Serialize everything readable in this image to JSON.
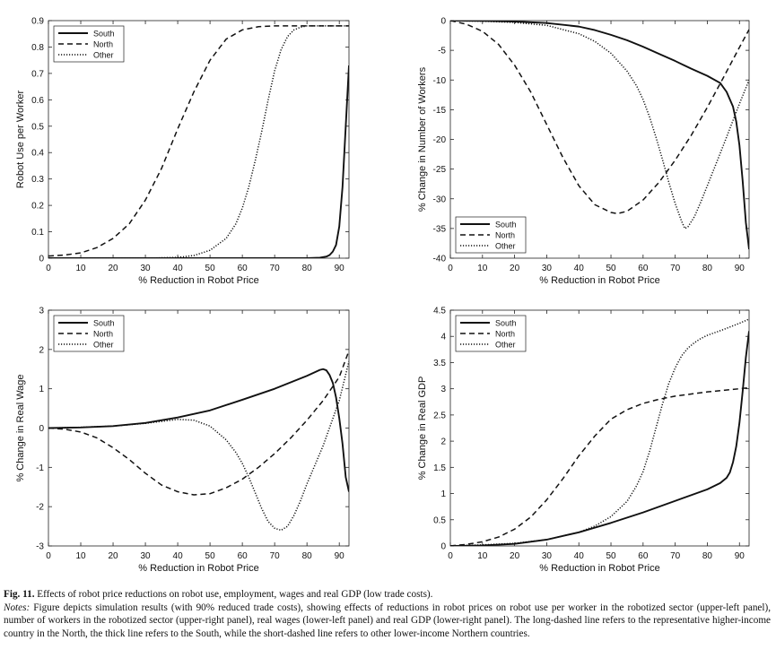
{
  "figure": {
    "panels": [
      {
        "id": "robot-use",
        "chart_data": {
          "type": "line",
          "title": "",
          "xlabel": "% Reduction in Robot Price",
          "ylabel": "Robot Use per Worker",
          "xlim": [
            0,
            93
          ],
          "ylim": [
            0,
            0.9
          ],
          "xticks": [
            "0",
            "10",
            "20",
            "30",
            "40",
            "50",
            "60",
            "70",
            "80",
            "90"
          ],
          "yticks": [
            "0",
            "0.1",
            "0.2",
            "0.3",
            "0.4",
            "0.5",
            "0.6",
            "0.7",
            "0.8",
            "0.9"
          ],
          "legend": [
            "South",
            "North",
            "Other"
          ],
          "legend_position": "top-left",
          "series": [
            {
              "name": "South",
              "style": "solid",
              "x": [
                0,
                10,
                20,
                30,
                40,
                50,
                60,
                70,
                80,
                84,
                86,
                87,
                88,
                89,
                90,
                91,
                92,
                93
              ],
              "y": [
                0,
                0,
                0,
                0,
                0,
                0,
                0,
                0,
                0,
                0.002,
                0.006,
                0.012,
                0.025,
                0.05,
                0.12,
                0.27,
                0.5,
                0.73
              ]
            },
            {
              "name": "North",
              "style": "dashed",
              "x": [
                0,
                5,
                10,
                15,
                20,
                25,
                30,
                35,
                40,
                45,
                50,
                55,
                60,
                65,
                70,
                75,
                80,
                85,
                93
              ],
              "y": [
                0.008,
                0.012,
                0.02,
                0.04,
                0.075,
                0.13,
                0.22,
                0.34,
                0.49,
                0.63,
                0.75,
                0.83,
                0.865,
                0.877,
                0.88,
                0.88,
                0.88,
                0.88,
                0.88
              ]
            },
            {
              "name": "Other",
              "style": "dotted",
              "x": [
                0,
                30,
                40,
                45,
                50,
                55,
                58,
                60,
                62,
                64,
                66,
                68,
                70,
                72,
                74,
                76,
                78,
                80,
                85,
                93
              ],
              "y": [
                0,
                0,
                0.003,
                0.01,
                0.03,
                0.075,
                0.13,
                0.19,
                0.27,
                0.37,
                0.48,
                0.6,
                0.71,
                0.79,
                0.84,
                0.865,
                0.875,
                0.88,
                0.88,
                0.88
              ]
            }
          ]
        }
      },
      {
        "id": "workers",
        "chart_data": {
          "type": "line",
          "title": "",
          "xlabel": "% Reduction in Robot Price",
          "ylabel": "% Change in Number of Workers",
          "xlim": [
            0,
            93
          ],
          "ylim": [
            -40,
            0
          ],
          "xticks": [
            "0",
            "10",
            "20",
            "30",
            "40",
            "50",
            "60",
            "70",
            "80",
            "90"
          ],
          "yticks": [
            "0",
            "-5",
            "-10",
            "-15",
            "-20",
            "-25",
            "-30",
            "-35",
            "-40"
          ],
          "legend": [
            "South",
            "North",
            "Other"
          ],
          "legend_position": "bottom-left",
          "series": [
            {
              "name": "South",
              "style": "solid",
              "x": [
                0,
                10,
                20,
                30,
                40,
                45,
                50,
                55,
                60,
                65,
                70,
                75,
                80,
                84,
                86,
                88,
                89,
                90,
                91,
                92,
                93
              ],
              "y": [
                0,
                -0.05,
                -0.15,
                -0.4,
                -1.0,
                -1.6,
                -2.4,
                -3.3,
                -4.4,
                -5.6,
                -6.8,
                -8.1,
                -9.3,
                -10.5,
                -12.0,
                -14.5,
                -17.0,
                -21.0,
                -27.0,
                -34.0,
                -38.5
              ]
            },
            {
              "name": "North",
              "style": "dashed",
              "x": [
                0,
                5,
                10,
                15,
                20,
                25,
                30,
                35,
                40,
                45,
                50,
                52,
                55,
                60,
                65,
                70,
                75,
                80,
                85,
                90,
                93
              ],
              "y": [
                0,
                -0.6,
                -1.8,
                -4.0,
                -7.5,
                -12.0,
                -17.5,
                -23.0,
                -27.8,
                -31.0,
                -32.3,
                -32.5,
                -32.1,
                -30.2,
                -27.2,
                -23.5,
                -19.3,
                -14.6,
                -9.6,
                -4.5,
                -1.5
              ]
            },
            {
              "name": "Other",
              "style": "dotted",
              "x": [
                0,
                10,
                20,
                30,
                40,
                45,
                50,
                55,
                58,
                60,
                62,
                64,
                66,
                68,
                70,
                72,
                73,
                74,
                76,
                78,
                80,
                85,
                90,
                93
              ],
              "y": [
                0,
                -0.1,
                -0.3,
                -0.8,
                -2.2,
                -3.5,
                -5.5,
                -8.5,
                -11.0,
                -13.3,
                -16.2,
                -19.6,
                -23.3,
                -27.2,
                -30.8,
                -33.8,
                -35.0,
                -34.7,
                -33.0,
                -30.5,
                -27.8,
                -21.0,
                -14.0,
                -10.0
              ]
            }
          ]
        }
      },
      {
        "id": "real-wage",
        "chart_data": {
          "type": "line",
          "title": "",
          "xlabel": "% Reduction in Robot Price",
          "ylabel": "% Change in Real Wage",
          "xlim": [
            0,
            93
          ],
          "ylim": [
            -3,
            3
          ],
          "xticks": [
            "0",
            "10",
            "20",
            "30",
            "40",
            "50",
            "60",
            "70",
            "80",
            "90"
          ],
          "yticks": [
            "3",
            "2",
            "1",
            "0",
            "-1",
            "-2",
            "-3"
          ],
          "legend": [
            "South",
            "North",
            "Other"
          ],
          "legend_position": "top-left",
          "series": [
            {
              "name": "South",
              "style": "solid",
              "x": [
                0,
                10,
                20,
                30,
                40,
                50,
                60,
                70,
                80,
                84,
                85,
                86,
                87,
                88,
                89,
                90,
                91,
                92,
                93
              ],
              "y": [
                0,
                0.015,
                0.05,
                0.13,
                0.27,
                0.45,
                0.72,
                1.0,
                1.33,
                1.48,
                1.5,
                1.47,
                1.35,
                1.15,
                0.78,
                0.25,
                -0.4,
                -1.25,
                -1.62
              ]
            },
            {
              "name": "North",
              "style": "dashed",
              "x": [
                0,
                5,
                10,
                15,
                20,
                25,
                30,
                35,
                40,
                45,
                50,
                55,
                60,
                65,
                70,
                75,
                80,
                85,
                90,
                93
              ],
              "y": [
                0,
                -0.03,
                -0.1,
                -0.25,
                -0.5,
                -0.8,
                -1.15,
                -1.45,
                -1.62,
                -1.7,
                -1.67,
                -1.52,
                -1.3,
                -1.0,
                -0.65,
                -0.25,
                0.2,
                0.7,
                1.3,
                1.97
              ]
            },
            {
              "name": "Other",
              "style": "dotted",
              "x": [
                0,
                10,
                20,
                30,
                40,
                45,
                50,
                55,
                58,
                60,
                62,
                64,
                66,
                68,
                70,
                72,
                74,
                76,
                78,
                80,
                85,
                90,
                93
              ],
              "y": [
                0,
                0.02,
                0.05,
                0.12,
                0.22,
                0.2,
                0.05,
                -0.3,
                -0.62,
                -0.9,
                -1.25,
                -1.65,
                -2.05,
                -2.38,
                -2.55,
                -2.6,
                -2.5,
                -2.22,
                -1.85,
                -1.42,
                -0.45,
                0.7,
                1.7
              ]
            }
          ]
        }
      },
      {
        "id": "real-gdp",
        "chart_data": {
          "type": "line",
          "title": "",
          "xlabel": "% Reduction in Robot Price",
          "ylabel": "% Change in Real GDP",
          "xlim": [
            0,
            93
          ],
          "ylim": [
            0,
            4.5
          ],
          "xticks": [
            "0",
            "10",
            "20",
            "30",
            "40",
            "50",
            "60",
            "70",
            "80",
            "90"
          ],
          "yticks": [
            "0",
            "0.5",
            "1",
            "1.5",
            "2",
            "2.5",
            "3",
            "3.5",
            "4",
            "4.5"
          ],
          "legend": [
            "South",
            "North",
            "Other"
          ],
          "legend_position": "top-left",
          "series": [
            {
              "name": "South",
              "style": "solid",
              "x": [
                0,
                10,
                20,
                30,
                40,
                50,
                60,
                70,
                80,
                84,
                86,
                87,
                88,
                89,
                90,
                91,
                92,
                93
              ],
              "y": [
                0,
                0.01,
                0.04,
                0.12,
                0.26,
                0.44,
                0.64,
                0.86,
                1.08,
                1.2,
                1.3,
                1.4,
                1.6,
                1.9,
                2.35,
                2.95,
                3.6,
                4.1
              ]
            },
            {
              "name": "North",
              "style": "dashed",
              "x": [
                0,
                5,
                10,
                15,
                20,
                25,
                30,
                35,
                40,
                45,
                50,
                55,
                60,
                65,
                70,
                75,
                80,
                85,
                90,
                93
              ],
              "y": [
                0,
                0.03,
                0.08,
                0.17,
                0.32,
                0.55,
                0.88,
                1.28,
                1.72,
                2.1,
                2.42,
                2.6,
                2.72,
                2.8,
                2.86,
                2.9,
                2.94,
                2.97,
                3.0,
                3.02
              ]
            },
            {
              "name": "Other",
              "style": "dotted",
              "x": [
                0,
                10,
                20,
                30,
                40,
                45,
                50,
                55,
                58,
                60,
                62,
                64,
                66,
                68,
                70,
                72,
                74,
                76,
                78,
                80,
                85,
                90,
                93
              ],
              "y": [
                0,
                0.02,
                0.05,
                0.12,
                0.26,
                0.38,
                0.56,
                0.85,
                1.15,
                1.42,
                1.8,
                2.25,
                2.7,
                3.1,
                3.4,
                3.63,
                3.78,
                3.88,
                3.96,
                4.02,
                4.13,
                4.25,
                4.33
              ]
            }
          ]
        }
      }
    ]
  },
  "caption": {
    "fig_label": "Fig. 11.",
    "fig_title": "Effects of robot price reductions on robot use, employment, wages and real GDP (low trade costs).",
    "notes_label": "Notes:",
    "notes_text": "Figure depicts simulation results (with 90% reduced trade costs), showing effects of reductions in robot prices on robot use per worker in the robotized sector (upper-left panel), number of workers in the robotized sector (upper-right panel), real wages (lower-left panel) and real GDP (lower-right panel). The long-dashed line refers to the representative higher-income country in the North, the thick line refers to the South, while the short-dashed line refers to other lower-income Northern countries."
  }
}
